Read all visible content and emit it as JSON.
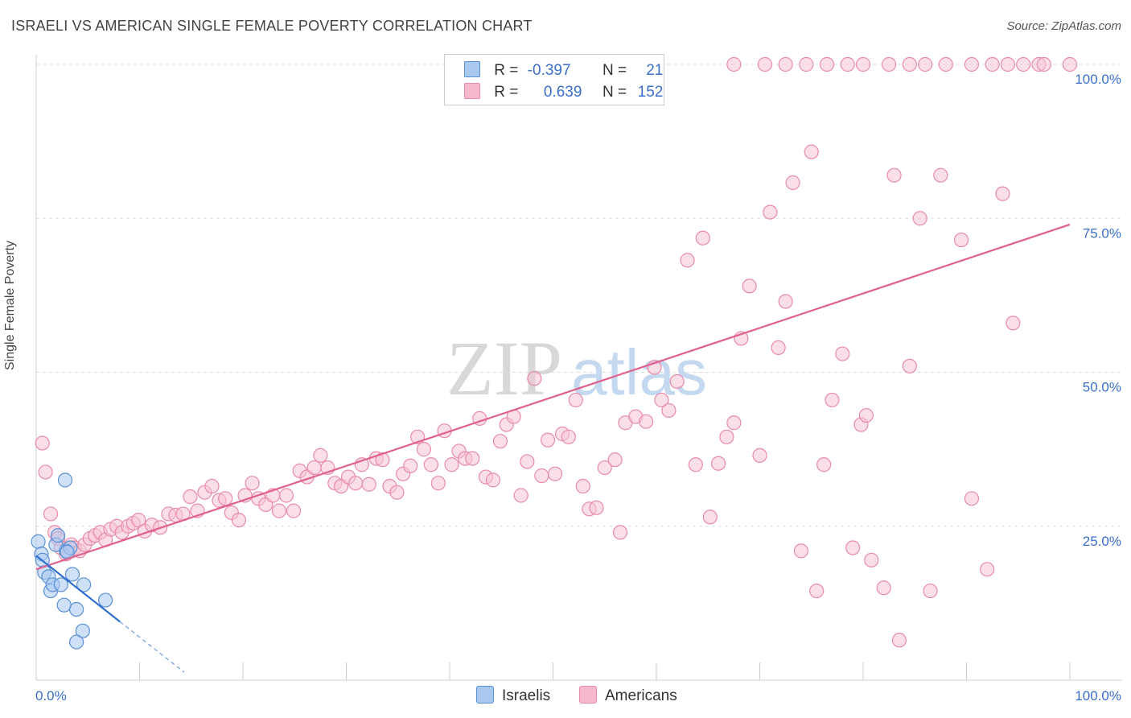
{
  "title": "ISRAELI VS AMERICAN SINGLE FEMALE POVERTY CORRELATION CHART",
  "source": "Source: ZipAtlas.com",
  "watermark": {
    "part1": "ZIP",
    "part2": "atlas"
  },
  "legend": {
    "rows": [
      {
        "r_label": "R =",
        "r_value": "-0.397",
        "n_label": "N =",
        "n_value": "21",
        "color": "#a8c8f0"
      },
      {
        "r_label": "R =",
        "r_value": "0.639",
        "n_label": "N =",
        "n_value": "152",
        "color": "#f5b8cc"
      }
    ]
  },
  "bottom_legend": [
    {
      "name": "Israelis",
      "color": "#a8c8f0"
    },
    {
      "name": "Americans",
      "color": "#f5b8cc"
    }
  ],
  "colors": {
    "israelis_fill": "#a8c8f0",
    "israelis_stroke": "#5b8fd6",
    "israelis_line": "#2f6fd0",
    "americans_fill": "#f8c4d4",
    "americans_stroke": "#e88aaa",
    "americans_line": "#e0608e",
    "axis_text": "#3a6fc9"
  },
  "chart_data": {
    "type": "scatter",
    "ylabel": "Single Female Poverty",
    "xlim": [
      0,
      100
    ],
    "ylim": [
      0,
      100
    ],
    "x_tick_labels": [
      {
        "value": 0,
        "label": "0.0%"
      },
      {
        "value": 100,
        "label": "100.0%"
      }
    ],
    "y_tick_labels": [
      {
        "value": 25,
        "label": "25.0%"
      },
      {
        "value": 50,
        "label": "50.0%"
      },
      {
        "value": 75,
        "label": "75.0%"
      },
      {
        "value": 100,
        "label": "100.0%"
      }
    ],
    "grid": true,
    "series": [
      {
        "name": "Israelis",
        "points": [
          [
            0.2,
            22.5
          ],
          [
            0.5,
            20.5
          ],
          [
            0.8,
            17.5
          ],
          [
            1.2,
            16.8
          ],
          [
            1.4,
            14.5
          ],
          [
            1.6,
            15.5
          ],
          [
            1.9,
            22.0
          ],
          [
            2.1,
            23.5
          ],
          [
            2.4,
            15.5
          ],
          [
            2.7,
            12.2
          ],
          [
            2.9,
            21.0
          ],
          [
            3.3,
            21.5
          ],
          [
            3.5,
            17.2
          ],
          [
            3.9,
            11.5
          ],
          [
            4.6,
            15.5
          ],
          [
            4.5,
            8.0
          ],
          [
            3.9,
            6.2
          ],
          [
            2.8,
            32.5
          ],
          [
            6.7,
            13.0
          ],
          [
            0.6,
            19.5
          ],
          [
            3.0,
            20.8
          ]
        ],
        "trend": {
          "x0": 0,
          "y0": 20.2,
          "x1": 8.1,
          "y1": 9.5,
          "dash_to_x": 14.3
        }
      },
      {
        "name": "Americans",
        "points": [
          [
            0.6,
            38.5
          ],
          [
            0.9,
            33.8
          ],
          [
            1.4,
            27.0
          ],
          [
            1.8,
            24.0
          ],
          [
            2.1,
            23.0
          ],
          [
            2.4,
            21.5
          ],
          [
            2.9,
            20.5
          ],
          [
            3.4,
            22.0
          ],
          [
            3.7,
            21.5
          ],
          [
            4.2,
            21.0
          ],
          [
            4.7,
            22.0
          ],
          [
            5.2,
            23.0
          ],
          [
            5.7,
            23.5
          ],
          [
            6.2,
            24.0
          ],
          [
            6.7,
            22.8
          ],
          [
            7.2,
            24.5
          ],
          [
            7.8,
            25.0
          ],
          [
            8.3,
            24.0
          ],
          [
            8.9,
            25.0
          ],
          [
            9.4,
            25.5
          ],
          [
            9.9,
            26.0
          ],
          [
            10.5,
            24.2
          ],
          [
            11.2,
            25.2
          ],
          [
            12.0,
            24.8
          ],
          [
            12.8,
            27.0
          ],
          [
            13.5,
            26.8
          ],
          [
            14.2,
            27.0
          ],
          [
            14.9,
            29.8
          ],
          [
            15.6,
            27.5
          ],
          [
            16.3,
            30.5
          ],
          [
            17.0,
            31.5
          ],
          [
            17.7,
            29.2
          ],
          [
            18.3,
            29.5
          ],
          [
            18.9,
            27.2
          ],
          [
            19.6,
            26.0
          ],
          [
            20.2,
            30.0
          ],
          [
            20.9,
            32.0
          ],
          [
            21.5,
            29.5
          ],
          [
            22.2,
            28.5
          ],
          [
            22.9,
            30.0
          ],
          [
            23.5,
            27.5
          ],
          [
            24.2,
            30.0
          ],
          [
            24.9,
            27.5
          ],
          [
            25.5,
            34.0
          ],
          [
            26.2,
            33.0
          ],
          [
            26.9,
            34.5
          ],
          [
            27.5,
            36.5
          ],
          [
            28.2,
            34.5
          ],
          [
            28.9,
            32.0
          ],
          [
            29.5,
            31.5
          ],
          [
            30.2,
            33.0
          ],
          [
            30.9,
            32.0
          ],
          [
            31.5,
            35.0
          ],
          [
            32.2,
            31.8
          ],
          [
            32.9,
            36.0
          ],
          [
            33.5,
            35.8
          ],
          [
            34.2,
            31.5
          ],
          [
            34.9,
            30.5
          ],
          [
            35.5,
            33.5
          ],
          [
            36.2,
            34.8
          ],
          [
            36.9,
            39.5
          ],
          [
            37.5,
            37.5
          ],
          [
            38.2,
            35.0
          ],
          [
            38.9,
            32.0
          ],
          [
            39.5,
            40.5
          ],
          [
            40.2,
            35.0
          ],
          [
            40.9,
            37.2
          ],
          [
            41.5,
            36.0
          ],
          [
            42.2,
            36.0
          ],
          [
            42.9,
            42.5
          ],
          [
            43.5,
            33.0
          ],
          [
            44.2,
            32.5
          ],
          [
            44.9,
            38.8
          ],
          [
            45.5,
            41.5
          ],
          [
            46.2,
            42.8
          ],
          [
            46.9,
            30.0
          ],
          [
            47.5,
            35.5
          ],
          [
            48.2,
            49.0
          ],
          [
            48.9,
            33.2
          ],
          [
            49.5,
            39.0
          ],
          [
            50.2,
            33.5
          ],
          [
            50.9,
            40.0
          ],
          [
            51.5,
            39.5
          ],
          [
            52.2,
            45.5
          ],
          [
            52.9,
            31.5
          ],
          [
            53.5,
            27.8
          ],
          [
            54.2,
            28.0
          ],
          [
            55.0,
            34.5
          ],
          [
            56.0,
            35.8
          ],
          [
            57.0,
            41.8
          ],
          [
            58.0,
            42.8
          ],
          [
            59.0,
            42.0
          ],
          [
            59.8,
            50.8
          ],
          [
            60.5,
            45.5
          ],
          [
            61.2,
            43.8
          ],
          [
            62.0,
            48.5
          ],
          [
            63.0,
            68.2
          ],
          [
            63.8,
            35.0
          ],
          [
            64.5,
            71.8
          ],
          [
            65.2,
            26.5
          ],
          [
            66.0,
            35.2
          ],
          [
            66.8,
            39.5
          ],
          [
            67.5,
            41.8
          ],
          [
            68.2,
            55.5
          ],
          [
            69.0,
            64.0
          ],
          [
            70.0,
            36.5
          ],
          [
            71.0,
            76.0
          ],
          [
            71.8,
            54.0
          ],
          [
            72.5,
            61.5
          ],
          [
            73.2,
            80.8
          ],
          [
            74.0,
            21.0
          ],
          [
            75.0,
            85.8
          ],
          [
            75.5,
            14.5
          ],
          [
            76.2,
            35.0
          ],
          [
            77.0,
            45.5
          ],
          [
            78.0,
            53.0
          ],
          [
            79.0,
            21.5
          ],
          [
            79.8,
            41.5
          ],
          [
            80.3,
            43.0
          ],
          [
            80.8,
            19.5
          ],
          [
            82.0,
            15.0
          ],
          [
            83.0,
            82.0
          ],
          [
            83.5,
            6.5
          ],
          [
            84.5,
            51.0
          ],
          [
            85.5,
            75.0
          ],
          [
            86.5,
            14.5
          ],
          [
            87.5,
            82.0
          ],
          [
            89.5,
            71.5
          ],
          [
            90.5,
            29.5
          ],
          [
            92.0,
            18.0
          ],
          [
            93.5,
            79.0
          ],
          [
            94.5,
            58.0
          ],
          [
            56.5,
            24.0
          ],
          [
            60.0,
            100.0
          ],
          [
            67.5,
            100.0
          ],
          [
            70.5,
            100.0
          ],
          [
            72.5,
            100.0
          ],
          [
            74.5,
            100.0
          ],
          [
            76.5,
            100.0
          ],
          [
            78.5,
            100.0
          ],
          [
            80.0,
            100.0
          ],
          [
            82.5,
            100.0
          ],
          [
            84.5,
            100.0
          ],
          [
            86.0,
            100.0
          ],
          [
            88.0,
            100.0
          ],
          [
            90.5,
            100.0
          ],
          [
            92.5,
            100.0
          ],
          [
            94.0,
            100.0
          ],
          [
            95.5,
            100.0
          ],
          [
            97.0,
            100.0
          ],
          [
            97.5,
            100.0
          ],
          [
            100.0,
            100.0
          ]
        ],
        "trend": {
          "x0": 0,
          "y0": 18.0,
          "x1": 100,
          "y1": 74.0
        }
      }
    ]
  }
}
